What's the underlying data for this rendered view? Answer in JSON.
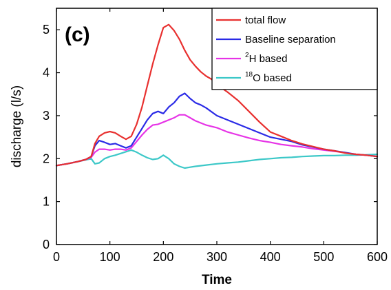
{
  "chart_data": {
    "type": "line",
    "panel_label": "(c)",
    "xlabel": "Time",
    "ylabel": "discharge (l/s)",
    "xlim": [
      0,
      600
    ],
    "ylim": [
      0,
      5.5
    ],
    "xticks": [
      0,
      100,
      200,
      300,
      400,
      500,
      600
    ],
    "yticks": [
      0,
      1,
      2,
      3,
      4,
      5
    ],
    "grid": false,
    "legend_position": "top-right",
    "series": [
      {
        "name": "total flow",
        "legend_sup": "",
        "legend_base": "total flow",
        "color": "#e8302f",
        "x": [
          0,
          20,
          40,
          55,
          65,
          72,
          80,
          90,
          100,
          110,
          120,
          130,
          140,
          150,
          160,
          170,
          180,
          190,
          200,
          210,
          220,
          230,
          240,
          250,
          260,
          270,
          280,
          290,
          300,
          320,
          340,
          360,
          380,
          400,
          420,
          440,
          460,
          480,
          500,
          520,
          540,
          560,
          580,
          600
        ],
        "y": [
          1.84,
          1.88,
          1.93,
          1.98,
          2.05,
          2.35,
          2.52,
          2.6,
          2.63,
          2.6,
          2.52,
          2.45,
          2.52,
          2.8,
          3.2,
          3.7,
          4.2,
          4.65,
          5.05,
          5.12,
          4.98,
          4.78,
          4.52,
          4.3,
          4.15,
          4.02,
          3.92,
          3.85,
          3.72,
          3.55,
          3.35,
          3.1,
          2.85,
          2.62,
          2.52,
          2.42,
          2.34,
          2.28,
          2.22,
          2.18,
          2.13,
          2.1,
          2.08,
          2.05
        ]
      },
      {
        "name": "Baseline separation",
        "legend_sup": "",
        "legend_base": "Baseline separation",
        "color": "#2a2ae6",
        "x": [
          0,
          20,
          40,
          55,
          65,
          72,
          80,
          90,
          100,
          110,
          120,
          130,
          140,
          150,
          160,
          170,
          180,
          190,
          200,
          210,
          220,
          230,
          240,
          250,
          260,
          270,
          280,
          300,
          320,
          340,
          360,
          380,
          400,
          420,
          440,
          460,
          480,
          500,
          520,
          540,
          560,
          580,
          600
        ],
        "y": [
          1.84,
          1.88,
          1.93,
          1.98,
          2.05,
          2.3,
          2.42,
          2.38,
          2.33,
          2.35,
          2.3,
          2.25,
          2.3,
          2.5,
          2.7,
          2.9,
          3.05,
          3.1,
          3.05,
          3.2,
          3.3,
          3.45,
          3.52,
          3.4,
          3.3,
          3.25,
          3.18,
          3.0,
          2.9,
          2.8,
          2.7,
          2.6,
          2.5,
          2.45,
          2.4,
          2.32,
          2.27,
          2.22,
          2.18,
          2.14,
          2.1,
          2.08,
          2.05
        ]
      },
      {
        "name": "2H based",
        "legend_sup": "2",
        "legend_base": "H based",
        "color": "#e633e6",
        "x": [
          0,
          20,
          40,
          55,
          65,
          72,
          80,
          90,
          100,
          110,
          120,
          130,
          140,
          150,
          160,
          170,
          180,
          190,
          200,
          210,
          220,
          230,
          240,
          250,
          260,
          270,
          280,
          300,
          320,
          340,
          360,
          380,
          400,
          420,
          440,
          460,
          480,
          500,
          520,
          540,
          560,
          580,
          600
        ],
        "y": [
          1.84,
          1.88,
          1.93,
          1.98,
          2.03,
          2.15,
          2.22,
          2.22,
          2.2,
          2.22,
          2.22,
          2.2,
          2.25,
          2.4,
          2.55,
          2.68,
          2.78,
          2.8,
          2.85,
          2.9,
          2.95,
          3.02,
          3.02,
          2.95,
          2.88,
          2.83,
          2.78,
          2.72,
          2.62,
          2.55,
          2.48,
          2.42,
          2.38,
          2.33,
          2.3,
          2.27,
          2.23,
          2.2,
          2.17,
          2.14,
          2.1,
          2.08,
          2.05
        ]
      },
      {
        "name": "18O based",
        "legend_sup": "18",
        "legend_base": "O based",
        "color": "#3cc8c8",
        "x": [
          0,
          20,
          40,
          55,
          65,
          72,
          80,
          90,
          100,
          110,
          120,
          130,
          140,
          150,
          160,
          170,
          180,
          190,
          200,
          210,
          220,
          230,
          240,
          250,
          260,
          280,
          300,
          320,
          340,
          360,
          380,
          400,
          420,
          440,
          460,
          480,
          500,
          520,
          540,
          560,
          580,
          600
        ],
        "y": [
          1.84,
          1.88,
          1.93,
          1.97,
          2.0,
          1.88,
          1.9,
          2.0,
          2.05,
          2.08,
          2.12,
          2.16,
          2.2,
          2.15,
          2.08,
          2.02,
          1.98,
          2.0,
          2.08,
          2.0,
          1.88,
          1.82,
          1.78,
          1.8,
          1.82,
          1.85,
          1.88,
          1.9,
          1.92,
          1.95,
          1.98,
          2.0,
          2.02,
          2.03,
          2.05,
          2.06,
          2.07,
          2.07,
          2.08,
          2.08,
          2.09,
          2.1
        ]
      }
    ]
  }
}
